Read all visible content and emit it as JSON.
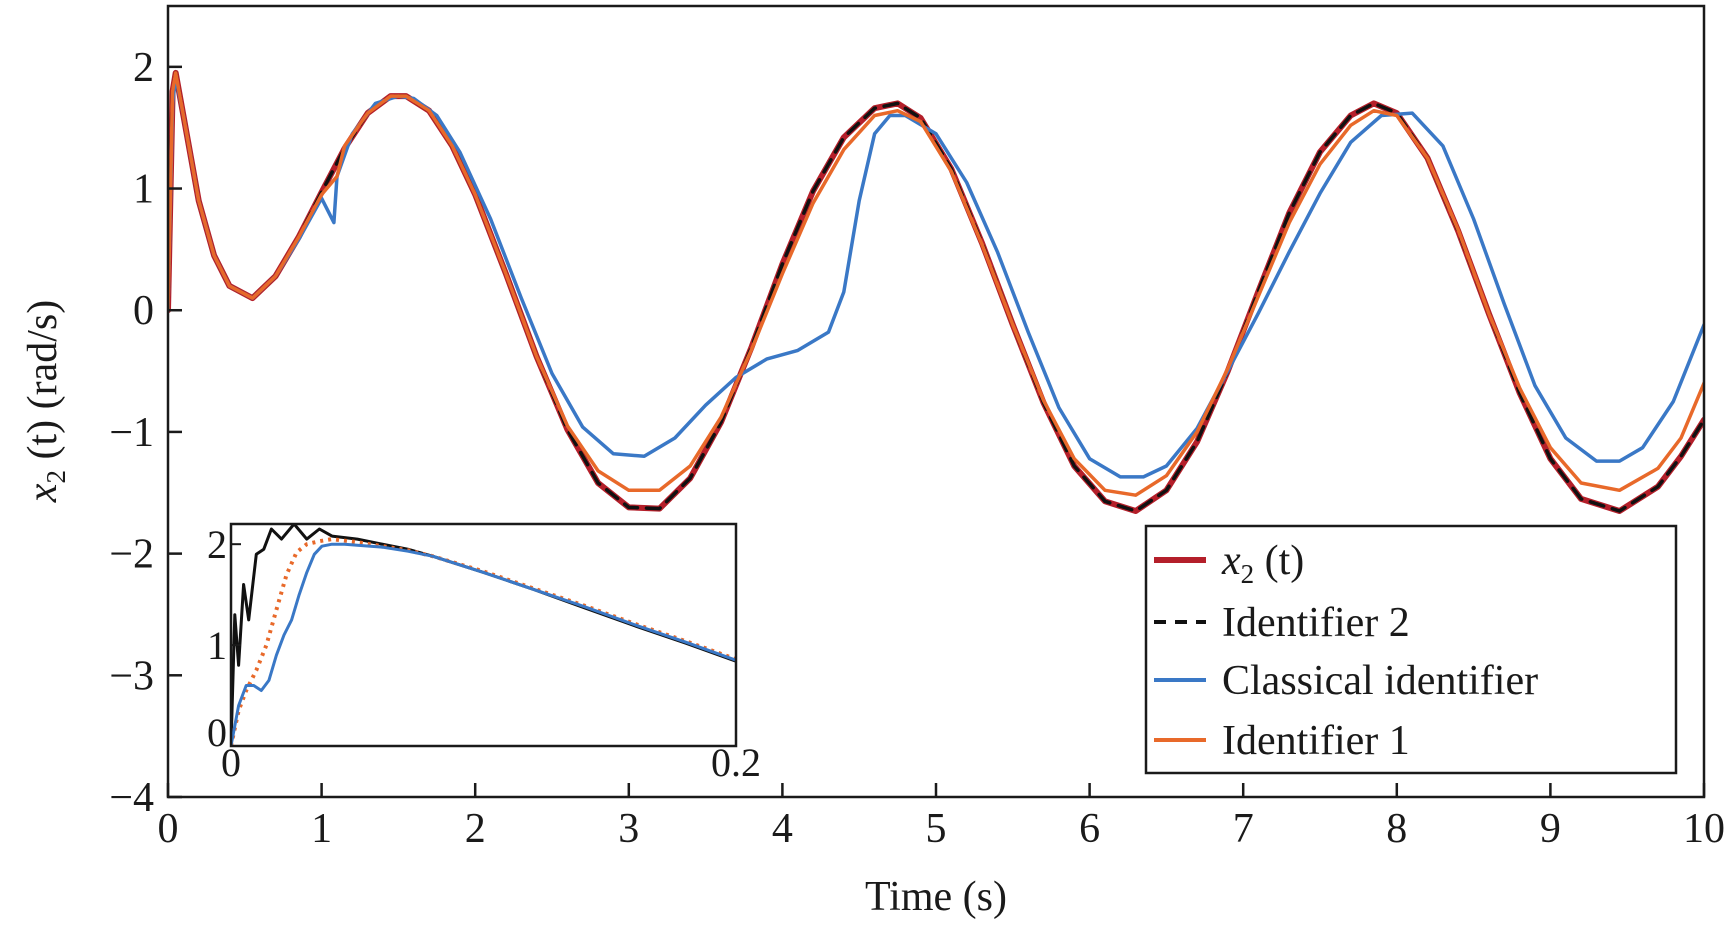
{
  "chart_data": {
    "type": "line",
    "xlabel": "Time (s)",
    "ylabel_var": "x",
    "ylabel_sub": "2",
    "ylabel_rest": " (t) (rad/s)",
    "xlim": [
      0,
      10
    ],
    "ylim": [
      -4,
      2.5
    ],
    "xticks": [
      0,
      1,
      2,
      3,
      4,
      5,
      6,
      7,
      8,
      9,
      10
    ],
    "yticks": [
      -4,
      -3,
      -2,
      -1,
      0,
      1,
      2
    ],
    "grid": false,
    "legend_position": "lower-right",
    "series": [
      {
        "name": "x2 (t)",
        "label_var": "x",
        "label_sub": "2",
        "label_rest": " (t)",
        "color": "#b41f2a",
        "style": "solid",
        "x": [
          0,
          0.03,
          0.05,
          0.1,
          0.2,
          0.3,
          0.4,
          0.55,
          0.7,
          0.85,
          1.0,
          1.15,
          1.3,
          1.45,
          1.55,
          1.7,
          1.85,
          2.0,
          2.2,
          2.4,
          2.6,
          2.8,
          3.0,
          3.2,
          3.4,
          3.6,
          3.8,
          4.0,
          4.2,
          4.4,
          4.6,
          4.75,
          4.9,
          5.1,
          5.3,
          5.5,
          5.7,
          5.9,
          6.1,
          6.3,
          6.5,
          6.7,
          6.9,
          7.1,
          7.3,
          7.5,
          7.7,
          7.85,
          8.0,
          8.2,
          8.4,
          8.6,
          8.8,
          9.0,
          9.2,
          9.45,
          9.7,
          9.85,
          10.0
        ],
        "y": [
          0.0,
          1.8,
          1.95,
          1.6,
          0.9,
          0.45,
          0.2,
          0.1,
          0.28,
          0.6,
          0.97,
          1.33,
          1.62,
          1.76,
          1.76,
          1.64,
          1.35,
          0.95,
          0.3,
          -0.38,
          -0.98,
          -1.42,
          -1.62,
          -1.63,
          -1.38,
          -0.92,
          -0.3,
          0.38,
          0.98,
          1.42,
          1.66,
          1.7,
          1.58,
          1.16,
          0.55,
          -0.12,
          -0.76,
          -1.28,
          -1.57,
          -1.65,
          -1.48,
          -1.08,
          -0.5,
          0.16,
          0.8,
          1.3,
          1.6,
          1.7,
          1.62,
          1.25,
          0.65,
          -0.03,
          -0.68,
          -1.22,
          -1.55,
          -1.65,
          -1.45,
          -1.2,
          -0.9
        ]
      },
      {
        "name": "Identifier 2",
        "color": "#111111",
        "style": "dashed",
        "x": [
          0,
          0.03,
          0.05,
          0.1,
          0.2,
          0.3,
          0.4,
          0.55,
          0.7,
          0.85,
          1.0,
          1.15,
          1.3,
          1.45,
          1.55,
          1.7,
          1.85,
          2.0,
          2.2,
          2.4,
          2.6,
          2.8,
          3.0,
          3.2,
          3.4,
          3.6,
          3.8,
          4.0,
          4.2,
          4.4,
          4.6,
          4.75,
          4.9,
          5.1,
          5.3,
          5.5,
          5.7,
          5.9,
          6.1,
          6.3,
          6.5,
          6.7,
          6.9,
          7.1,
          7.3,
          7.5,
          7.7,
          7.85,
          8.0,
          8.2,
          8.4,
          8.6,
          8.8,
          9.0,
          9.2,
          9.45,
          9.7,
          9.85,
          10.0
        ],
        "y": [
          0.0,
          1.8,
          1.95,
          1.6,
          0.9,
          0.45,
          0.2,
          0.1,
          0.28,
          0.6,
          0.97,
          1.33,
          1.62,
          1.76,
          1.76,
          1.64,
          1.35,
          0.95,
          0.3,
          -0.38,
          -0.98,
          -1.42,
          -1.62,
          -1.63,
          -1.38,
          -0.92,
          -0.3,
          0.38,
          0.98,
          1.42,
          1.66,
          1.7,
          1.58,
          1.16,
          0.55,
          -0.12,
          -0.76,
          -1.28,
          -1.57,
          -1.65,
          -1.48,
          -1.08,
          -0.5,
          0.16,
          0.8,
          1.3,
          1.6,
          1.7,
          1.62,
          1.25,
          0.65,
          -0.03,
          -0.68,
          -1.22,
          -1.55,
          -1.65,
          -1.45,
          -1.2,
          -0.9
        ]
      },
      {
        "name": "Classical identifier",
        "color": "#3a78c6",
        "style": "solid",
        "x": [
          0,
          0.03,
          0.05,
          0.1,
          0.2,
          0.3,
          0.4,
          0.55,
          0.7,
          0.85,
          1.0,
          1.08,
          1.1,
          1.2,
          1.35,
          1.5,
          1.6,
          1.75,
          1.9,
          2.1,
          2.3,
          2.5,
          2.7,
          2.9,
          3.1,
          3.3,
          3.5,
          3.7,
          3.9,
          4.1,
          4.3,
          4.4,
          4.5,
          4.6,
          4.7,
          4.8,
          5.0,
          5.2,
          5.4,
          5.6,
          5.8,
          6.0,
          6.2,
          6.35,
          6.5,
          6.7,
          6.9,
          7.1,
          7.3,
          7.5,
          7.7,
          7.9,
          8.1,
          8.3,
          8.5,
          8.7,
          8.9,
          9.1,
          9.3,
          9.45,
          9.6,
          9.8,
          10.0
        ],
        "y": [
          0.0,
          1.7,
          1.92,
          1.6,
          0.9,
          0.45,
          0.2,
          0.1,
          0.28,
          0.58,
          0.92,
          0.72,
          1.1,
          1.45,
          1.7,
          1.76,
          1.74,
          1.6,
          1.3,
          0.75,
          0.1,
          -0.52,
          -0.96,
          -1.18,
          -1.2,
          -1.05,
          -0.78,
          -0.55,
          -0.4,
          -0.33,
          -0.18,
          0.15,
          0.9,
          1.45,
          1.6,
          1.6,
          1.45,
          1.05,
          0.48,
          -0.18,
          -0.8,
          -1.22,
          -1.37,
          -1.37,
          -1.28,
          -0.97,
          -0.5,
          -0.02,
          0.48,
          0.96,
          1.38,
          1.6,
          1.62,
          1.35,
          0.75,
          0.05,
          -0.62,
          -1.05,
          -1.24,
          -1.24,
          -1.13,
          -0.75,
          -0.12
        ]
      },
      {
        "name": "Identifier 1",
        "color": "#e8692a",
        "style": "solid",
        "x": [
          0,
          0.03,
          0.05,
          0.1,
          0.2,
          0.3,
          0.4,
          0.55,
          0.7,
          0.85,
          1.0,
          1.1,
          1.15,
          1.3,
          1.45,
          1.55,
          1.7,
          1.85,
          2.0,
          2.2,
          2.4,
          2.6,
          2.8,
          3.0,
          3.2,
          3.4,
          3.6,
          3.8,
          4.0,
          4.2,
          4.4,
          4.6,
          4.75,
          4.9,
          5.1,
          5.3,
          5.5,
          5.7,
          5.9,
          6.1,
          6.3,
          6.5,
          6.7,
          6.9,
          7.1,
          7.3,
          7.5,
          7.7,
          7.85,
          8.0,
          8.2,
          8.4,
          8.6,
          8.8,
          9.0,
          9.2,
          9.45,
          9.7,
          9.85,
          10.0
        ],
        "y": [
          0.0,
          1.8,
          1.95,
          1.6,
          0.9,
          0.45,
          0.2,
          0.1,
          0.28,
          0.6,
          0.95,
          1.1,
          1.35,
          1.62,
          1.76,
          1.76,
          1.64,
          1.35,
          0.95,
          0.3,
          -0.38,
          -0.95,
          -1.32,
          -1.48,
          -1.48,
          -1.28,
          -0.88,
          -0.32,
          0.3,
          0.88,
          1.32,
          1.6,
          1.64,
          1.55,
          1.14,
          0.54,
          -0.12,
          -0.74,
          -1.22,
          -1.48,
          -1.52,
          -1.36,
          -1.0,
          -0.48,
          0.12,
          0.72,
          1.2,
          1.52,
          1.64,
          1.6,
          1.25,
          0.66,
          -0.03,
          -0.64,
          -1.13,
          -1.42,
          -1.48,
          -1.3,
          -1.05,
          -0.6
        ]
      }
    ],
    "inset": {
      "xlim": [
        0,
        0.2
      ],
      "ylim": [
        0,
        2.2
      ],
      "xtick_labels": [
        "0",
        "0.2"
      ],
      "ytick_labels": [
        "0",
        "1",
        "2"
      ],
      "xticks": [
        0,
        0.2
      ],
      "yticks": [
        0,
        1,
        2
      ],
      "series": [
        {
          "color": "#111111",
          "style": "solid",
          "x": [
            0,
            0.0015,
            0.003,
            0.005,
            0.007,
            0.01,
            0.013,
            0.016,
            0.02,
            0.025,
            0.03,
            0.035,
            0.04,
            0.05,
            0.06,
            0.07,
            0.08,
            0.1,
            0.12,
            0.14,
            0.16,
            0.18,
            0.2
          ],
          "y": [
            0.0,
            1.3,
            0.8,
            1.6,
            1.25,
            1.9,
            1.95,
            2.15,
            2.05,
            2.2,
            2.05,
            2.15,
            2.08,
            2.05,
            2.0,
            1.95,
            1.88,
            1.72,
            1.55,
            1.37,
            1.19,
            1.02,
            0.84
          ]
        },
        {
          "color": "#e8692a",
          "style": "dotted",
          "x": [
            0,
            0.003,
            0.006,
            0.01,
            0.014,
            0.018,
            0.022,
            0.026,
            0.03,
            0.035,
            0.04,
            0.05,
            0.06,
            0.07,
            0.08,
            0.1,
            0.12,
            0.14,
            0.16,
            0.18,
            0.2
          ],
          "y": [
            0.0,
            0.35,
            0.55,
            0.75,
            1.0,
            1.35,
            1.7,
            1.92,
            2.0,
            2.03,
            2.05,
            2.02,
            1.98,
            1.94,
            1.88,
            1.73,
            1.56,
            1.39,
            1.21,
            1.04,
            0.86
          ]
        },
        {
          "color": "#3a78c6",
          "style": "solid",
          "x": [
            0,
            0.003,
            0.006,
            0.009,
            0.012,
            0.015,
            0.018,
            0.021,
            0.024,
            0.027,
            0.03,
            0.033,
            0.036,
            0.04,
            0.045,
            0.05,
            0.06,
            0.07,
            0.08,
            0.1,
            0.12,
            0.14,
            0.16,
            0.18,
            0.2
          ],
          "y": [
            0.0,
            0.4,
            0.6,
            0.6,
            0.55,
            0.65,
            0.9,
            1.1,
            1.25,
            1.5,
            1.72,
            1.9,
            1.98,
            2.0,
            2.0,
            1.99,
            1.97,
            1.93,
            1.88,
            1.72,
            1.55,
            1.38,
            1.2,
            1.03,
            0.85
          ]
        }
      ]
    }
  }
}
